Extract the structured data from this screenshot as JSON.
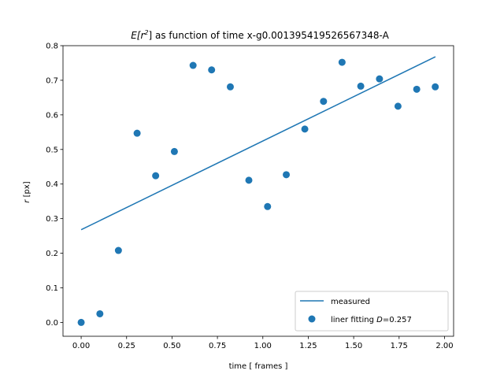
{
  "chart_data": {
    "type": "scatter",
    "title": {
      "expect_prefix": "E[r",
      "sup": "2",
      "suffix": "] as function of time x-g0.001395419526567348-A"
    },
    "xlabel": "time [ frames ]",
    "ylabel": {
      "var": "r",
      "unit": " [px]"
    },
    "xlim": [
      -0.1,
      2.05
    ],
    "ylim": [
      -0.04,
      0.8
    ],
    "xticks": [
      0.0,
      0.25,
      0.5,
      0.75,
      1.0,
      1.25,
      1.5,
      1.75,
      2.0
    ],
    "xtick_labels": [
      "0.00",
      "0.25",
      "0.50",
      "0.75",
      "1.00",
      "1.25",
      "1.50",
      "1.75",
      "2.00"
    ],
    "yticks": [
      0.0,
      0.1,
      0.2,
      0.3,
      0.4,
      0.5,
      0.6,
      0.7,
      0.8
    ],
    "ytick_labels": [
      "0.0",
      "0.1",
      "0.2",
      "0.3",
      "0.4",
      "0.5",
      "0.6",
      "0.7",
      "0.8"
    ],
    "grid": false,
    "legend_placement": "lower-right",
    "series": [
      {
        "name": "measured",
        "kind": "line",
        "color": "#1f77b4",
        "x": [
          0.0,
          1.95
        ],
        "y": [
          0.268,
          0.768
        ]
      },
      {
        "name": "liner fitting D=0.257",
        "legend_text": {
          "prefix": "liner fitting ",
          "var": "D",
          "suffix": "=0.257"
        },
        "kind": "scatter",
        "color": "#1f77b4",
        "x": [
          0.0,
          0.103,
          0.205,
          0.308,
          0.41,
          0.513,
          0.616,
          0.718,
          0.821,
          0.923,
          1.026,
          1.129,
          1.231,
          1.334,
          1.436,
          1.539,
          1.642,
          1.744,
          1.847,
          1.949
        ],
        "y": [
          0.0,
          0.025,
          0.208,
          0.547,
          0.424,
          0.494,
          0.743,
          0.73,
          0.681,
          0.411,
          0.335,
          0.427,
          0.559,
          0.639,
          0.752,
          0.683,
          0.704,
          0.625,
          0.674,
          0.681
        ]
      }
    ]
  }
}
